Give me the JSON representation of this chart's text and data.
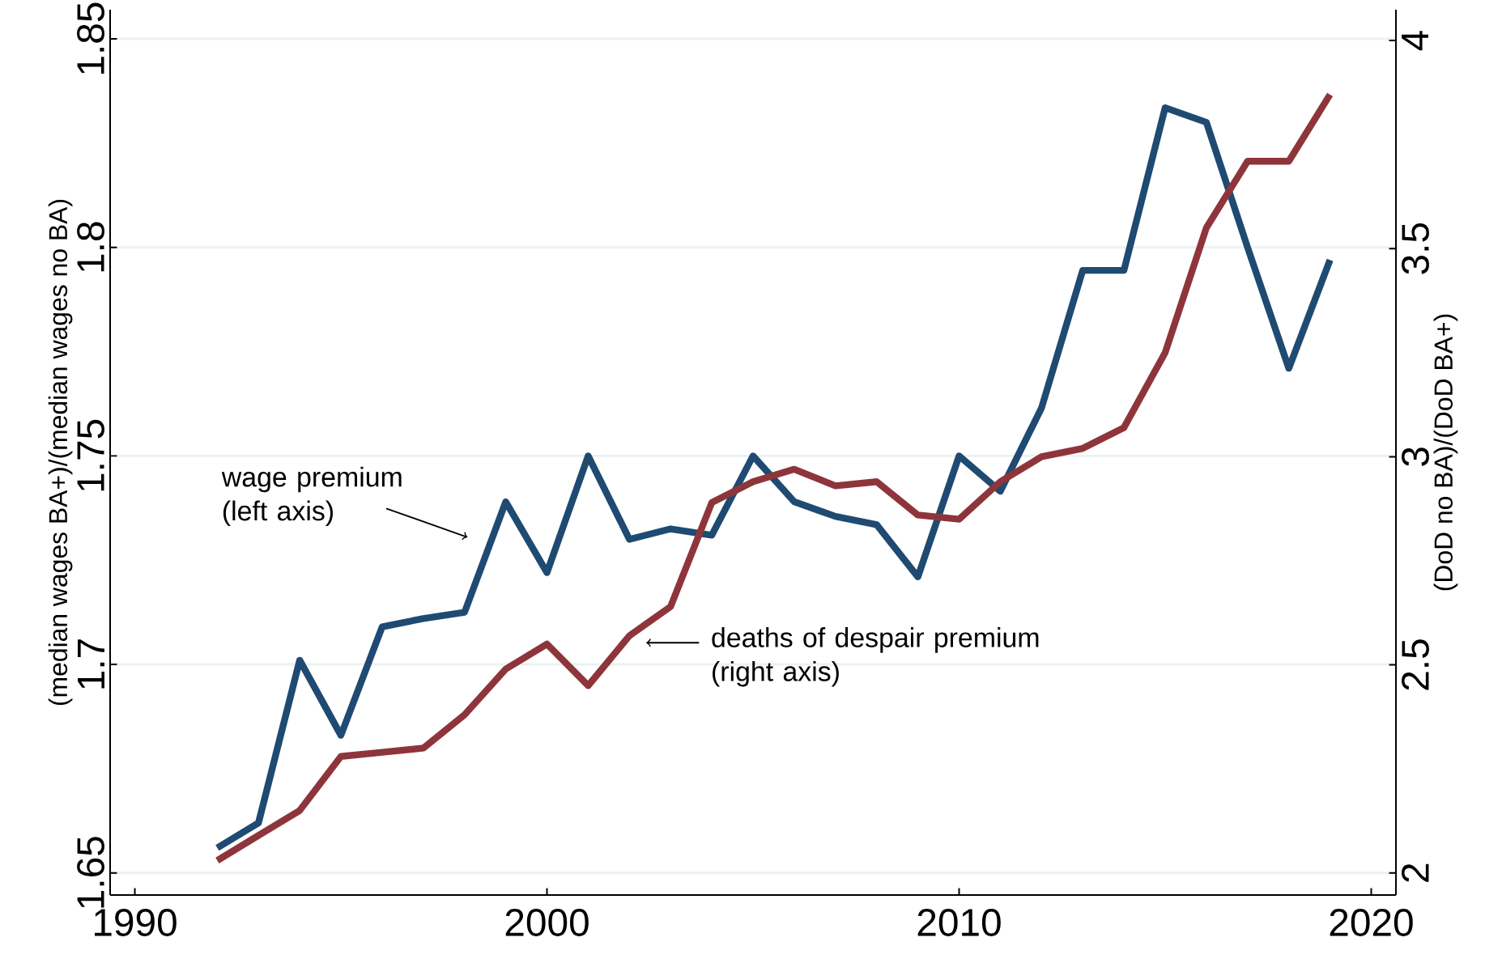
{
  "chart_data": {
    "type": "line",
    "x": [
      1992,
      1993,
      1994,
      1995,
      1996,
      1997,
      1998,
      1999,
      2000,
      2001,
      2002,
      2003,
      2004,
      2005,
      2006,
      2007,
      2008,
      2009,
      2010,
      2011,
      2012,
      2013,
      2014,
      2015,
      2016,
      2017,
      2018,
      2019
    ],
    "series": [
      {
        "color": "#1f4a72",
        "values": [
          1.656,
          1.662,
          1.701,
          1.683,
          1.709,
          1.711,
          1.7125,
          1.739,
          1.722,
          1.75,
          1.73,
          1.7325,
          1.731,
          1.75,
          1.739,
          1.7355,
          1.7335,
          1.721,
          1.75,
          1.7415,
          1.7615,
          1.7945,
          1.7945,
          1.8335,
          1.83,
          1.8,
          1.771,
          1.797
        ]
      },
      {
        "color": "#8e353b",
        "axis": "y2",
        "values": [
          2.03,
          2.09,
          2.15,
          2.28,
          2.29,
          2.3,
          2.38,
          2.49,
          2.55,
          2.45,
          2.57,
          2.64,
          2.89,
          2.94,
          2.97,
          2.93,
          2.94,
          2.86,
          2.85,
          2.94,
          3.0,
          3.02,
          3.07,
          3.25,
          3.55,
          3.71,
          3.71,
          3.87
        ]
      }
    ],
    "ylabel": "(median wages BA+)/(median wages no BA)",
    "y2label": "(DoD no BA)/(DoD BA+)",
    "xlim": [
      1989.4,
      2020.6
    ],
    "xticks": [
      1990,
      2000,
      2010,
      2020
    ],
    "ylim": [
      1.6447,
      1.857
    ],
    "yticks": [
      1.65,
      1.7,
      1.75,
      1.8,
      1.85
    ],
    "y2lim": [
      1.947,
      4.074
    ],
    "y2ticks": [
      2,
      2.5,
      3,
      3.5,
      4
    ],
    "grid": "y",
    "line_style": "solid",
    "annotations": [
      "wage premium (left axis)",
      "deaths of despair premium (right axis)"
    ]
  }
}
